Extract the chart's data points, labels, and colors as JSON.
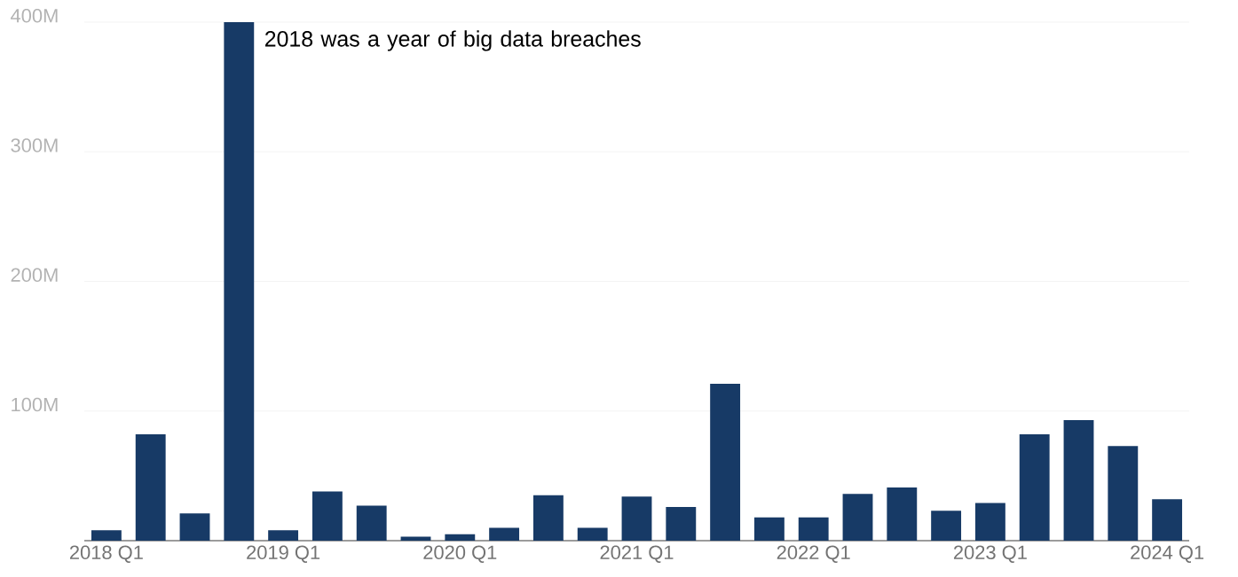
{
  "chart_data": {
    "type": "bar",
    "categories": [
      "2018 Q1",
      null,
      null,
      null,
      "2019 Q1",
      null,
      null,
      null,
      "2020 Q1",
      null,
      null,
      null,
      "2021 Q1",
      null,
      null,
      null,
      "2022 Q1",
      null,
      null,
      null,
      "2023 Q1",
      null,
      null,
      null,
      "2024 Q1"
    ],
    "values": [
      8,
      82,
      21,
      400,
      8,
      38,
      27,
      3,
      5,
      10,
      35,
      10,
      34,
      26,
      121,
      18,
      18,
      36,
      41,
      23,
      29,
      82,
      93,
      73,
      32
    ],
    "color": "#173a66",
    "ylim": [
      0,
      400
    ],
    "yticks": [
      {
        "value": 0,
        "label": null
      },
      {
        "value": 100,
        "label": "100M"
      },
      {
        "value": 200,
        "label": "200M"
      },
      {
        "value": 300,
        "label": "300M"
      },
      {
        "value": 400,
        "label": "400M"
      }
    ],
    "grid": "y",
    "annotations": [
      "2018 was a year of big data breaches"
    ]
  }
}
